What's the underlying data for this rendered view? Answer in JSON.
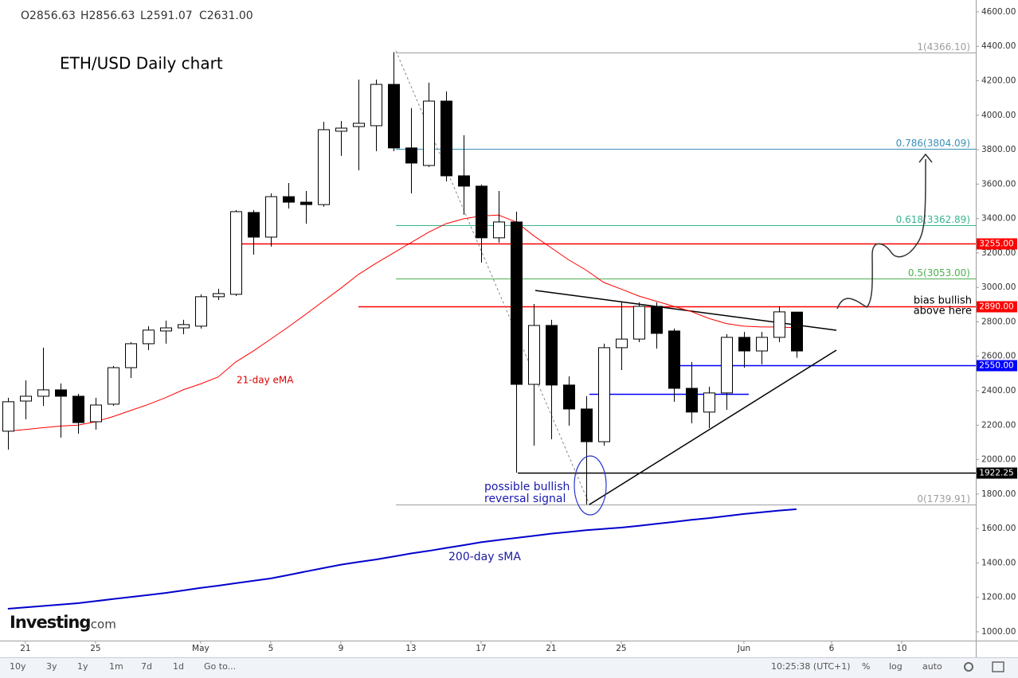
{
  "chart_data": {
    "type": "candlestick",
    "title": "ETH/USD Daily chart",
    "ohlc_header": [
      "O2856.63",
      "H2856.63",
      "L2591.07",
      "C2631.00"
    ],
    "open": [
      2165,
      2340,
      2368,
      2405,
      2368,
      2220,
      2322,
      2534,
      2673,
      2747,
      2765,
      2775,
      2946,
      2960,
      3435,
      3292,
      3527,
      3495,
      3481,
      3907,
      3934,
      3939,
      4179,
      3810,
      3708,
      4082,
      3648,
      3588,
      3288,
      3380,
      2437,
      2779,
      2433,
      2294,
      2104,
      2650,
      2700,
      2890,
      2747,
      2414,
      2276,
      2387,
      2710,
      2631,
      2710,
      2856.63
    ],
    "high": [
      2359,
      2460,
      2650,
      2442,
      2382,
      2359,
      2544,
      2682,
      2775,
      2807,
      2812,
      2960,
      2992,
      3449,
      3449,
      3546,
      3606,
      3560,
      3962,
      3966,
      4207,
      4207,
      4366.1,
      4041,
      4189,
      4138,
      3884,
      3597,
      3560,
      3440,
      2904,
      2812,
      2483,
      2368,
      2673,
      2913,
      2913,
      2913,
      2761,
      2567,
      2423,
      2728,
      2742,
      2742,
      2890,
      2856.63
    ],
    "low": [
      2058,
      2234,
      2312,
      2128,
      2150,
      2174,
      2312,
      2474,
      2636,
      2673,
      2728,
      2761,
      2927,
      2950,
      3190,
      3237,
      3458,
      3370,
      3468,
      3764,
      3680,
      3791,
      3791,
      3546,
      3699,
      3616,
      3422,
      3144,
      3260,
      1924,
      2081,
      2118,
      2197,
      1739.91,
      2081,
      2520,
      2682,
      2645,
      2336,
      2211,
      2183,
      2289,
      2534,
      2553,
      2682,
      2591.07
    ],
    "close": [
      2336,
      2368,
      2405,
      2368,
      2215,
      2317,
      2534,
      2673,
      2752,
      2765,
      2784,
      2946,
      2964,
      3440,
      3292,
      3527,
      3495,
      3481,
      3916,
      3925,
      3953,
      4179,
      3810,
      3722,
      4082,
      3648,
      3588,
      3288,
      3380,
      2437,
      2779,
      2433,
      2294,
      2104,
      2650,
      2700,
      2890,
      2733,
      2414,
      2276,
      2387,
      2710,
      2631,
      2710,
      2858,
      2631
    ],
    "series": [
      {
        "name": "21-day eMA",
        "color": "#ff0000",
        "values": [
          2165,
          2175,
          2185,
          2195,
          2200,
          2220,
          2250,
          2285,
          2320,
          2360,
          2405,
          2440,
          2480,
          2567,
          2630,
          2700,
          2770,
          2844,
          2920,
          2995,
          3075,
          3140,
          3200,
          3260,
          3320,
          3370,
          3398,
          3415,
          3420,
          3380,
          3300,
          3230,
          3160,
          3100,
          3029,
          2990,
          2950,
          2920,
          2890,
          2860,
          2820,
          2790,
          2775,
          2770,
          2770,
          2765
        ]
      },
      {
        "name": "200-day sMA",
        "color": "#0000cc",
        "values": [
          1134,
          1142,
          1150,
          1158,
          1166,
          1178,
          1190,
          1202,
          1214,
          1226,
          1240,
          1255,
          1268,
          1282,
          1296,
          1310,
          1330,
          1350,
          1370,
          1390,
          1405,
          1420,
          1437,
          1455,
          1470,
          1487,
          1503,
          1520,
          1533,
          1545,
          1557,
          1570,
          1580,
          1590,
          1598,
          1605,
          1616,
          1627,
          1638,
          1650,
          1660,
          1672,
          1684,
          1694,
          1704,
          1712
        ]
      }
    ],
    "fib_levels": [
      {
        "value": 4366.1,
        "label": "1(4366.10)",
        "color": "#9e9e9e"
      },
      {
        "value": 3804.09,
        "label": "0.786(3804.09)",
        "color": "#3a8fb7"
      },
      {
        "value": 3362.89,
        "label": "0.618(3362.89)",
        "color": "#35b58f"
      },
      {
        "value": 3053,
        "label": "0.5(3053.00)",
        "color": "#4caf50"
      },
      {
        "value": 1739.91,
        "label": "0(1739.91)",
        "color": "#9e9e9e"
      }
    ],
    "price_levels": [
      {
        "value": 3255,
        "label": "3255.00",
        "color": "#ff0000"
      },
      {
        "value": 2890,
        "label": "2890.00",
        "color": "#ff0000"
      },
      {
        "value": 2550,
        "label": "2550.00",
        "color": "#0000ff"
      },
      {
        "value": 1922.25,
        "label": "1922.25",
        "color": "#000000"
      }
    ],
    "annotations": {
      "bias": [
        "bias bullish",
        "above here"
      ],
      "reversal": [
        "possible bullish",
        "reversal signal"
      ]
    },
    "ylim": [
      949,
      4669
    ],
    "yticks": [
      {
        "value": 1000,
        "label": "1000.00"
      },
      {
        "value": 1200,
        "label": "1200.00"
      },
      {
        "value": 1400,
        "label": "1400.00"
      },
      {
        "value": 1600,
        "label": "1600.00"
      },
      {
        "value": 1800,
        "label": "1800.00"
      },
      {
        "value": 2000,
        "label": "2000.00"
      },
      {
        "value": 2200,
        "label": "2200.00"
      },
      {
        "value": 2400,
        "label": "2400.00"
      },
      {
        "value": 2600,
        "label": "2600.00"
      },
      {
        "value": 2800,
        "label": "2800.00"
      },
      {
        "value": 3000,
        "label": "3000.00"
      },
      {
        "value": 3200,
        "label": "3200.00"
      },
      {
        "value": 3400,
        "label": "3400.00"
      },
      {
        "value": 3600,
        "label": "3600.00"
      },
      {
        "value": 3800,
        "label": "3800.00"
      },
      {
        "value": 4000,
        "label": "4000.00"
      },
      {
        "value": 4200,
        "label": "4200.00"
      },
      {
        "value": 4400,
        "label": "4400.00"
      },
      {
        "value": 4600,
        "label": "4600.00"
      }
    ],
    "xlim": [
      -0.45,
      55.23
    ],
    "xticks": [
      {
        "value": 1,
        "label": "21"
      },
      {
        "value": 5,
        "label": "25"
      },
      {
        "value": 11,
        "label": "May"
      },
      {
        "value": 15,
        "label": "5"
      },
      {
        "value": 19,
        "label": "9"
      },
      {
        "value": 23,
        "label": "13"
      },
      {
        "value": 27,
        "label": "17"
      },
      {
        "value": 31,
        "label": "21"
      },
      {
        "value": 35,
        "label": "25"
      },
      {
        "value": 42,
        "label": "Jun"
      },
      {
        "value": 47,
        "label": "6"
      },
      {
        "value": 51,
        "label": "10"
      }
    ],
    "logo": [
      "Investing",
      ".com"
    ],
    "toolbar": {
      "ranges": [
        "10y",
        "3y",
        "1y",
        "1m",
        "7d",
        "1d"
      ],
      "goto": "Go to...",
      "time": "10:25:38 (UTC+1)",
      "options": [
        "%",
        "log",
        "auto"
      ]
    }
  }
}
